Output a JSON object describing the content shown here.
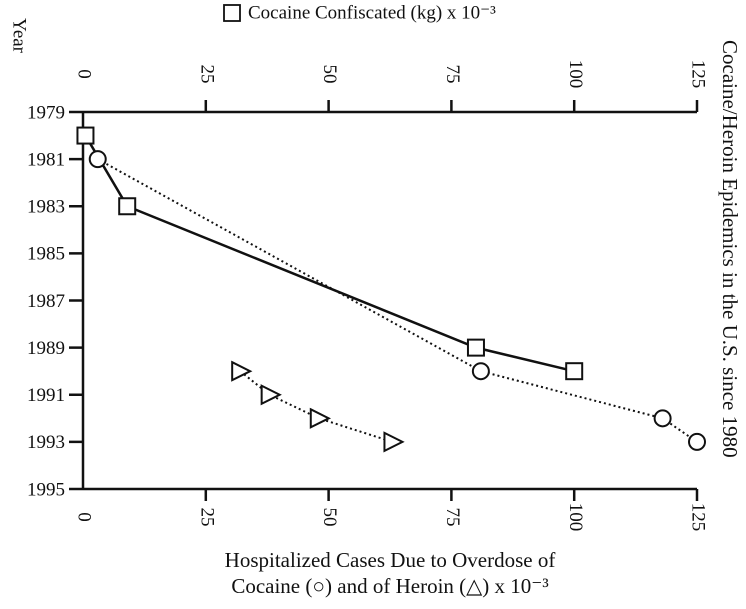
{
  "chart_data": {
    "type": "line",
    "title": "Cocaine/Heroin Epidemics in the U.S. since 1980",
    "y_label": "Year",
    "x2_label": "Cocaine Confiscated (kg) x 10⁻³",
    "x_label": [
      "Hospitalized Cases Due to Overdose of",
      "Cocaine (○) and of Heroin (△) x 10⁻³"
    ],
    "ylim": [
      1979,
      1995
    ],
    "y_inverted": true,
    "yticks": [
      1979,
      1981,
      1983,
      1985,
      1987,
      1989,
      1991,
      1993,
      1995
    ],
    "xlim": [
      0,
      125
    ],
    "xticks": [
      0,
      25,
      50,
      75,
      100,
      125
    ],
    "x2lim": [
      0,
      125
    ],
    "x2ticks": [
      0,
      25,
      50,
      75,
      100,
      125
    ],
    "series": [
      {
        "marker": "square",
        "line_style": "solid",
        "axis": "x2",
        "x": [
          1980,
          1983,
          1989,
          1990
        ],
        "values": [
          0.5,
          9,
          80,
          100
        ]
      },
      {
        "marker": "circle",
        "line_style": "dotted",
        "axis": "x",
        "x": [
          1981,
          1990,
          1992,
          1993
        ],
        "values": [
          3,
          81,
          118,
          125
        ]
      },
      {
        "marker": "triangle",
        "line_style": "dotted",
        "axis": "x",
        "x": [
          1990,
          1991,
          1992,
          1993
        ],
        "values": [
          32,
          38,
          48,
          63
        ]
      }
    ]
  }
}
